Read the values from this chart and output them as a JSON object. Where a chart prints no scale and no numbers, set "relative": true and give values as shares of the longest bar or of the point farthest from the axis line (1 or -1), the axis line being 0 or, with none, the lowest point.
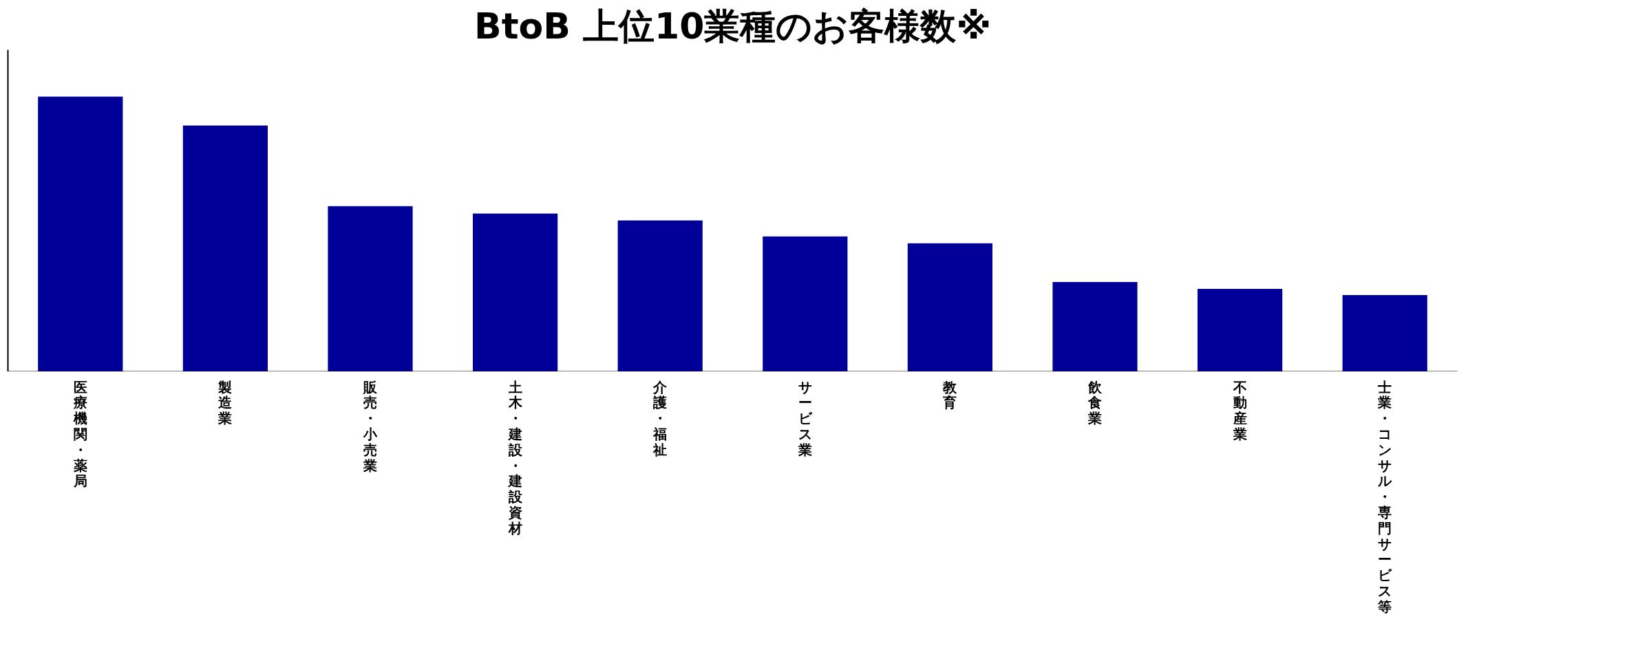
{
  "chart_data": {
    "type": "bar",
    "title": "BtoB 上位10業種のお客様数※",
    "categories": [
      "医療機関・薬局",
      "製造業",
      "販売・小売業",
      "土木・建設・建設資材",
      "介護・福祉",
      "サービス業",
      "教育",
      "飲食業",
      "不動産業",
      "士業・コンサル・専門サービス等"
    ],
    "values": [
      1,
      0.895,
      0.602,
      0.575,
      0.55,
      0.492,
      0.467,
      0.326,
      0.301,
      0.279
    ],
    "color": "#000099",
    "relative": true
  }
}
